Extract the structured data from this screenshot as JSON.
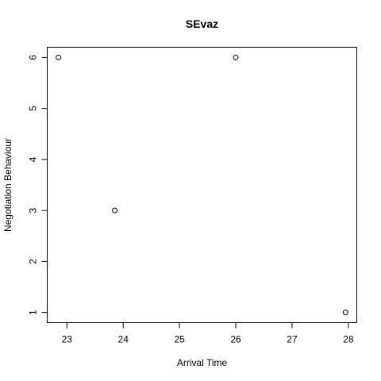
{
  "chart_data": {
    "type": "scatter",
    "title": "SEvaz",
    "xlabel": "Arrival Time",
    "ylabel": "Negotiation Behaviour",
    "x": [
      22.85,
      23.85,
      26.0,
      27.95
    ],
    "y": [
      6,
      3,
      6,
      1
    ],
    "xlim": [
      22.65,
      28.15
    ],
    "ylim": [
      0.8,
      6.2
    ],
    "xticks": [
      23,
      24,
      25,
      26,
      27,
      28
    ],
    "yticks": [
      1,
      2,
      3,
      4,
      5,
      6
    ],
    "grid": false,
    "marker": "open-circle"
  }
}
